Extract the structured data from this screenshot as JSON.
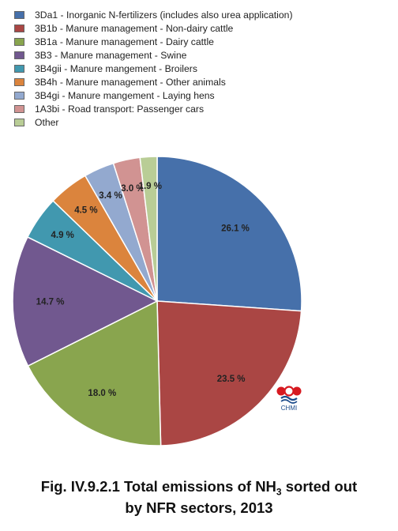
{
  "chart_data": {
    "type": "pie",
    "slices": [
      {
        "label": "3Da1 - Inorganic N-fertilizers (includes also urea application)",
        "value": 26.1,
        "value_label": "26.1 %",
        "color": "#4670aa"
      },
      {
        "label": "3B1b - Manure management - Non-dairy cattle",
        "value": 23.5,
        "value_label": "23.5 %",
        "color": "#aa4644"
      },
      {
        "label": "3B1a - Manure management - Dairy cattle",
        "value": 18.0,
        "value_label": "18.0 %",
        "color": "#89a54e"
      },
      {
        "label": "3B3 - Manure management - Swine",
        "value": 14.7,
        "value_label": "14.7 %",
        "color": "#71588f"
      },
      {
        "label": "3B4gii - Manure mangement -  Broilers",
        "value": 4.9,
        "value_label": "4.9 %",
        "color": "#4198af"
      },
      {
        "label": "3B4h - Manure management - Other animals",
        "value": 4.5,
        "value_label": "4.5 %",
        "color": "#db843d"
      },
      {
        "label": "3B4gi - Manure mangement -  Laying hens",
        "value": 3.4,
        "value_label": "3.4 %",
        "color": "#93a9cf"
      },
      {
        "label": "1A3bi - Road transport: Passenger cars",
        "value": 3.0,
        "value_label": "3.0 %",
        "color": "#d19392"
      },
      {
        "label": "Other",
        "value": 1.9,
        "value_label": "1.9 %",
        "color": "#b9cd96"
      }
    ],
    "legend_position": "top"
  },
  "caption": {
    "line1_prefix": "Fig. IV.9.2.1  Total emissions of NH",
    "line1_sub": "3",
    "line1_suffix": " sorted out",
    "line2": "by NFR sectors, 2013"
  },
  "logo": {
    "text": "CHMI",
    "colors": [
      "#d71920",
      "#1a4a8a"
    ]
  }
}
